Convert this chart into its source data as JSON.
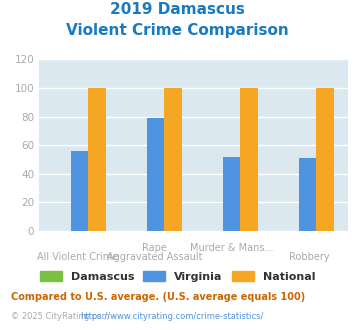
{
  "title_line1": "2019 Damascus",
  "title_line2": "Violent Crime Comparison",
  "title_color": "#1a7abf",
  "categories_top": [
    "",
    "Rape",
    "Murder & Mans...",
    ""
  ],
  "categories_bot": [
    "All Violent Crime",
    "Aggravated Assault",
    "",
    "Robbery"
  ],
  "series": {
    "Damascus": {
      "values": [
        0,
        0,
        0,
        0
      ],
      "color": "#7ac143"
    },
    "Virginia": {
      "values": [
        56,
        79,
        52,
        51
      ],
      "color": "#4f94e0"
    },
    "National": {
      "values": [
        100,
        100,
        100,
        100
      ],
      "color": "#f5a623"
    }
  },
  "ylim": [
    0,
    120
  ],
  "yticks": [
    0,
    20,
    40,
    60,
    80,
    100,
    120
  ],
  "plot_bg_color": "#dce8f0",
  "grid_color": "#ffffff",
  "legend_labels": [
    "Damascus",
    "Virginia",
    "National"
  ],
  "legend_colors": [
    "#7ac143",
    "#4f94e0",
    "#f5a623"
  ],
  "footnote1": "Compared to U.S. average. (U.S. average equals 100)",
  "footnote1_color": "#cc6600",
  "copyright_text": "© 2025 CityRating.com - ",
  "copyright_color": "#aaaaaa",
  "url_text": "https://www.cityrating.com/crime-statistics/",
  "url_color": "#4f94e0",
  "tick_label_color": "#aaaaaa"
}
